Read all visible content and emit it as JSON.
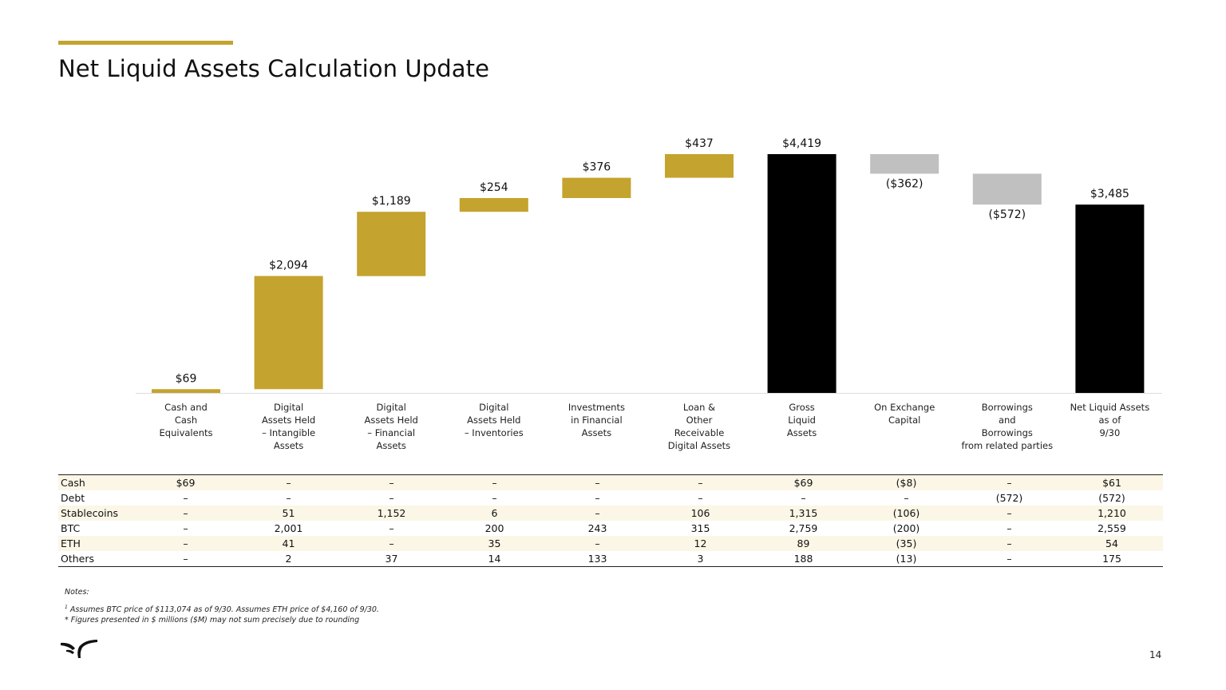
{
  "page": {
    "title": "Net Liquid Assets Calculation Update",
    "page_number": "14"
  },
  "colors": {
    "accent": "#c4a32e",
    "increase": "#c4a32e",
    "decrease": "#c0c0c0",
    "total": "#000000"
  },
  "chart_data": {
    "type": "waterfall",
    "title": "Net Liquid Assets Calculation Update",
    "units": "$M",
    "categories": [
      "Cash and Cash Equivalents",
      "Digital Assets Held – Intangible Assets",
      "Digital Assets Held – Financial Assets",
      "Digital Assets Held – Inventories",
      "Investments in Financial Assets",
      "Loan & Other Receivable Digital Assets",
      "Gross Liquid Assets",
      "On Exchange Capital",
      "Borrowings and Borrowings from related parties",
      "Net Liquid Assets as of 9/30"
    ],
    "category_lines": [
      [
        "Cash and",
        "Cash",
        "Equivalents"
      ],
      [
        "Digital",
        "Assets Held",
        "– Intangible",
        "Assets"
      ],
      [
        "Digital",
        "Assets Held",
        "– Financial",
        "Assets"
      ],
      [
        "Digital",
        "Assets Held",
        "– Inventories"
      ],
      [
        "Investments",
        "in Financial",
        "Assets"
      ],
      [
        "Loan &",
        "Other",
        "Receivable",
        "Digital Assets"
      ],
      [
        "Gross",
        "Liquid",
        "Assets"
      ],
      [
        "On Exchange",
        "Capital"
      ],
      [
        "Borrowings",
        "and",
        "Borrowings",
        "from related parties"
      ],
      [
        "Net Liquid Assets",
        "as of",
        "9/30"
      ]
    ],
    "values": [
      69,
      2094,
      1189,
      254,
      376,
      437,
      4419,
      -362,
      -572,
      3485
    ],
    "kinds": [
      "increase",
      "increase",
      "increase",
      "increase",
      "increase",
      "increase",
      "total",
      "decrease",
      "decrease",
      "total"
    ],
    "value_labels": [
      "$69",
      "$2,094",
      "$1,189",
      "$254",
      "$376",
      "$437",
      "$4,419",
      "($362)",
      "($572)",
      "$3,485"
    ],
    "ylim": [
      0,
      4419
    ]
  },
  "table": {
    "rows": [
      {
        "label": "Cash",
        "cells": [
          "$69",
          "–",
          "–",
          "–",
          "–",
          "–",
          "$69",
          "($8)",
          "–",
          "$61"
        ]
      },
      {
        "label": "Debt",
        "cells": [
          "–",
          "–",
          "–",
          "–",
          "–",
          "–",
          "–",
          "–",
          "(572)",
          "(572)"
        ]
      },
      {
        "label": "Stablecoins",
        "cells": [
          "–",
          "51",
          "1,152",
          "6",
          "–",
          "106",
          "1,315",
          "(106)",
          "–",
          "1,210"
        ]
      },
      {
        "label": "BTC",
        "cells": [
          "–",
          "2,001",
          "–",
          "200",
          "243",
          "315",
          "2,759",
          "(200)",
          "–",
          "2,559"
        ]
      },
      {
        "label": "ETH",
        "cells": [
          "–",
          "41",
          "–",
          "35",
          "–",
          "12",
          "89",
          "(35)",
          "–",
          "54"
        ]
      },
      {
        "label": "Others",
        "cells": [
          "–",
          "2",
          "37",
          "14",
          "133",
          "3",
          "188",
          "(13)",
          "–",
          "175"
        ]
      }
    ]
  },
  "notes": {
    "title": "Notes:",
    "footnote_marker": "1",
    "line1": "Assumes BTC price of $113,074 as of 9/30. Assumes ETH price of $4,160 of 9/30.",
    "line2": "* Figures presented in $ millions ($M) may not sum precisely due to rounding"
  },
  "logo": {
    "icon": "bull-horns-logo"
  }
}
